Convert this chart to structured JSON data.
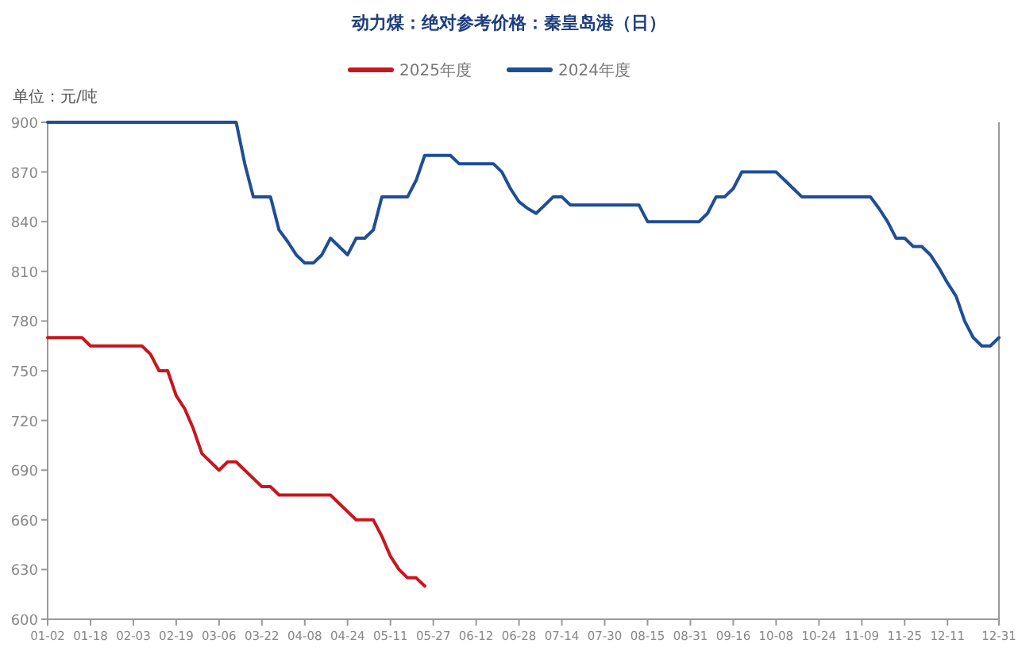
{
  "chart_data": {
    "type": "line",
    "title": "动力煤：绝对参考价格：秦皇岛港（日）",
    "annotations": [
      "单位：元/吨"
    ],
    "categories": [
      "01-02",
      null,
      null,
      null,
      null,
      "01-18",
      null,
      null,
      null,
      null,
      "02-03",
      null,
      null,
      null,
      null,
      "02-19",
      null,
      null,
      null,
      null,
      "03-06",
      null,
      null,
      null,
      null,
      "03-22",
      null,
      null,
      null,
      null,
      "04-08",
      null,
      null,
      null,
      null,
      "04-24",
      null,
      null,
      null,
      null,
      "05-11",
      null,
      null,
      null,
      null,
      "05-27",
      null,
      null,
      null,
      null,
      "06-12",
      null,
      null,
      null,
      null,
      "06-28",
      null,
      null,
      null,
      null,
      "07-14",
      null,
      null,
      null,
      null,
      "07-30",
      null,
      null,
      null,
      null,
      "08-15",
      null,
      null,
      null,
      null,
      "08-31",
      null,
      null,
      null,
      null,
      "09-16",
      null,
      null,
      null,
      null,
      "10-08",
      null,
      null,
      null,
      null,
      "10-24",
      null,
      null,
      null,
      null,
      "11-09",
      null,
      null,
      null,
      null,
      "11-25",
      null,
      null,
      null,
      null,
      "12-11",
      null,
      null,
      null,
      null,
      null,
      "12-31"
    ],
    "series": [
      {
        "name": "2025年度",
        "color": "#c8161d",
        "values": [
          770,
          770,
          770,
          770,
          770,
          765,
          765,
          765,
          765,
          765,
          765,
          765,
          760,
          750,
          750,
          735,
          727,
          715,
          700,
          695,
          690,
          695,
          695,
          690,
          685,
          680,
          680,
          675,
          675,
          675,
          675,
          675,
          675,
          675,
          670,
          665,
          660,
          660,
          660,
          650,
          638,
          630,
          625,
          625,
          620,
          null,
          null,
          null,
          null,
          null,
          null,
          null,
          null,
          null,
          null,
          null,
          null,
          null,
          null,
          null,
          null,
          null,
          null,
          null,
          null,
          null,
          null,
          null,
          null,
          null,
          null,
          null,
          null,
          null,
          null,
          null,
          null,
          null,
          null,
          null,
          null,
          null,
          null,
          null,
          null,
          null,
          null,
          null,
          null,
          null,
          null,
          null,
          null,
          null,
          null,
          null,
          null,
          null,
          null,
          null,
          null,
          null,
          null,
          null,
          null,
          null,
          null,
          null,
          null,
          null,
          null,
          null
        ]
      },
      {
        "name": "2024年度",
        "color": "#1f4e96",
        "values": [
          900,
          900,
          900,
          900,
          900,
          900,
          900,
          900,
          900,
          900,
          900,
          900,
          900,
          900,
          900,
          900,
          900,
          900,
          900,
          900,
          900,
          900,
          900,
          875,
          855,
          855,
          855,
          835,
          828,
          820,
          815,
          815,
          820,
          830,
          825,
          820,
          830,
          830,
          835,
          855,
          855,
          855,
          855,
          865,
          880,
          880,
          880,
          880,
          875,
          875,
          875,
          875,
          875,
          870,
          860,
          852,
          848,
          845,
          850,
          855,
          855,
          850,
          850,
          850,
          850,
          850,
          850,
          850,
          850,
          850,
          840,
          840,
          840,
          840,
          840,
          840,
          840,
          845,
          855,
          855,
          860,
          870,
          870,
          870,
          870,
          870,
          865,
          860,
          855,
          855,
          855,
          855,
          855,
          855,
          855,
          855,
          855,
          848,
          840,
          830,
          830,
          825,
          825,
          820,
          812,
          803,
          795,
          780,
          770,
          765,
          765,
          770
        ]
      }
    ],
    "ylim": [
      600,
      900
    ],
    "yticks": [
      600,
      630,
      660,
      690,
      720,
      750,
      780,
      810,
      840,
      870,
      900
    ],
    "grid": false,
    "legend": "top",
    "line_style": "solid",
    "marker": "none"
  }
}
